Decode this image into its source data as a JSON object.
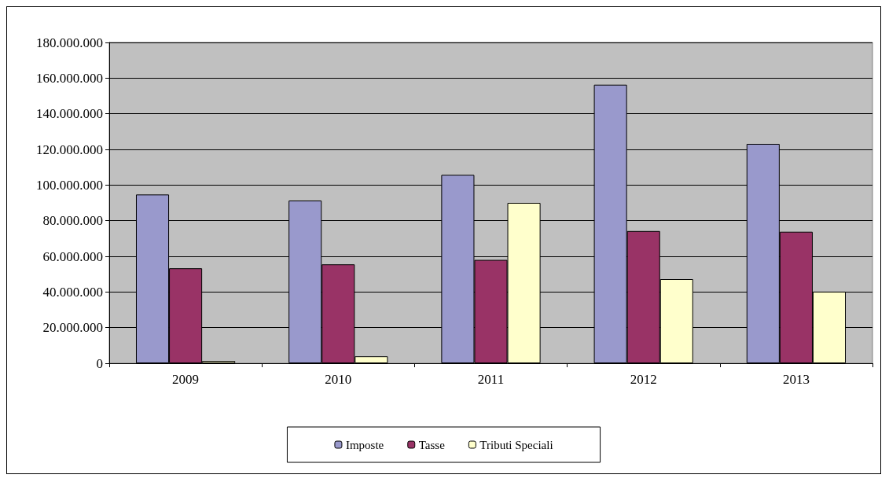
{
  "chart_data": {
    "type": "bar",
    "categories": [
      "2009",
      "2010",
      "2011",
      "2012",
      "2013"
    ],
    "series": [
      {
        "name": "Imposte",
        "color": "#9999cc",
        "values": [
          94700000,
          91300000,
          105700000,
          156300000,
          123100000
        ]
      },
      {
        "name": "Tasse",
        "color": "#993366",
        "values": [
          53300000,
          55500000,
          58000000,
          74200000,
          73800000
        ]
      },
      {
        "name": "Tributi Speciali",
        "color": "#ffffcc",
        "values": [
          1300000,
          3900000,
          90000000,
          47200000,
          40200000
        ]
      }
    ],
    "ylim": [
      0,
      180000000
    ],
    "yticks": [
      {
        "value": 0,
        "label": "0"
      },
      {
        "value": 20000000,
        "label": "20.000.000"
      },
      {
        "value": 40000000,
        "label": "40.000.000"
      },
      {
        "value": 60000000,
        "label": "60.000.000"
      },
      {
        "value": 80000000,
        "label": "80.000.000"
      },
      {
        "value": 100000000,
        "label": "100.000.000"
      },
      {
        "value": 120000000,
        "label": "120.000.000"
      },
      {
        "value": 140000000,
        "label": "140.000.000"
      },
      {
        "value": 160000000,
        "label": "160.000.000"
      },
      {
        "value": 180000000,
        "label": "180.000.000"
      }
    ],
    "grid": "y",
    "legend": "bottom"
  }
}
